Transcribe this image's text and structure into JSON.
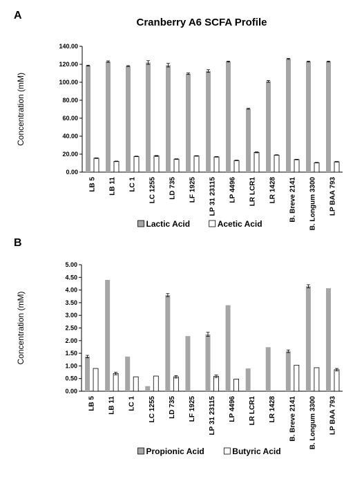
{
  "figure_title": "Cranberry A6 SCFA Profile",
  "colors": {
    "series_gray": "#a6a6a6",
    "series_white": "#ffffff",
    "axis": "#000000",
    "bar_stroke": "#000000"
  },
  "chart_data": [
    {
      "panel_label": "A",
      "type": "bar",
      "categories": [
        "LB 5",
        "LB 11",
        "LC 1",
        "LC 1255",
        "LD 735",
        "LF 1925",
        "LP 31 23115",
        "LP 4496",
        "LR LCR1",
        "LR 1428",
        "B. Breve 2141",
        "B. Longum 3300",
        "LP BAA 793"
      ],
      "ylabel": "Concentration (mM)",
      "ylim": [
        0,
        140
      ],
      "yticks": [
        "0.00",
        "20.00",
        "40.00",
        "60.00",
        "80.00",
        "100.00",
        "120.00",
        "140.00"
      ],
      "grid": false,
      "legend_position": "bottom",
      "series": [
        {
          "name": "Lactic Acid",
          "color": "#a6a6a6",
          "values": [
            118.5,
            123.0,
            118.0,
            122.0,
            119.0,
            109.5,
            112.5,
            123.0,
            70.5,
            101.0,
            126.0,
            123.0,
            123.0
          ],
          "errors": [
            0.5,
            0.8,
            0.5,
            2.0,
            2.0,
            0.8,
            1.5,
            0.5,
            0.5,
            1.0,
            0.5,
            0.5,
            0.5
          ]
        },
        {
          "name": "Acetic Acid",
          "color": "#ffffff",
          "values": [
            15.5,
            12.0,
            17.5,
            18.0,
            14.5,
            18.0,
            17.0,
            13.0,
            22.0,
            19.0,
            14.0,
            10.5,
            11.5
          ],
          "errors": [
            0.3,
            0.3,
            0.3,
            0.5,
            0.3,
            0.3,
            0.3,
            0.3,
            0.5,
            0.3,
            0.3,
            0.3,
            0.3
          ]
        }
      ]
    },
    {
      "panel_label": "B",
      "type": "bar",
      "categories": [
        "LB 5",
        "LB 11",
        "LC 1",
        "LC 1255",
        "LD 735",
        "LF 1925",
        "LP 31 23115",
        "LP 4496",
        "LR LCR1",
        "LR 1428",
        "B. Breve 2141",
        "B. Longum 3300",
        "LP BAA 793"
      ],
      "ylabel": "Concentration (mM)",
      "ylim": [
        0,
        5
      ],
      "yticks": [
        "0.00",
        "0.50",
        "1.00",
        "1.50",
        "2.00",
        "2.50",
        "3.00",
        "3.50",
        "4.00",
        "4.50",
        "5.00"
      ],
      "grid": false,
      "legend_position": "bottom",
      "series": [
        {
          "name": "Propionic Acid",
          "color": "#a6a6a6",
          "values": [
            1.37,
            4.4,
            1.37,
            0.2,
            3.8,
            2.18,
            2.25,
            3.4,
            0.9,
            1.74,
            1.58,
            4.15,
            4.07
          ],
          "errors": [
            0.05,
            0.0,
            0.0,
            0.0,
            0.06,
            0.0,
            0.08,
            0.0,
            0.0,
            0.0,
            0.05,
            0.06,
            0.0
          ]
        },
        {
          "name": "Butyric Acid",
          "color": "#ffffff",
          "values": [
            0.9,
            0.7,
            0.57,
            0.6,
            0.57,
            0,
            0.59,
            0.48,
            0,
            0,
            1.03,
            0.93,
            0.85
          ],
          "errors": [
            0.0,
            0.05,
            0.0,
            0.0,
            0.05,
            0,
            0.05,
            0.0,
            0,
            0,
            0.0,
            0.0,
            0.05
          ]
        }
      ]
    }
  ]
}
